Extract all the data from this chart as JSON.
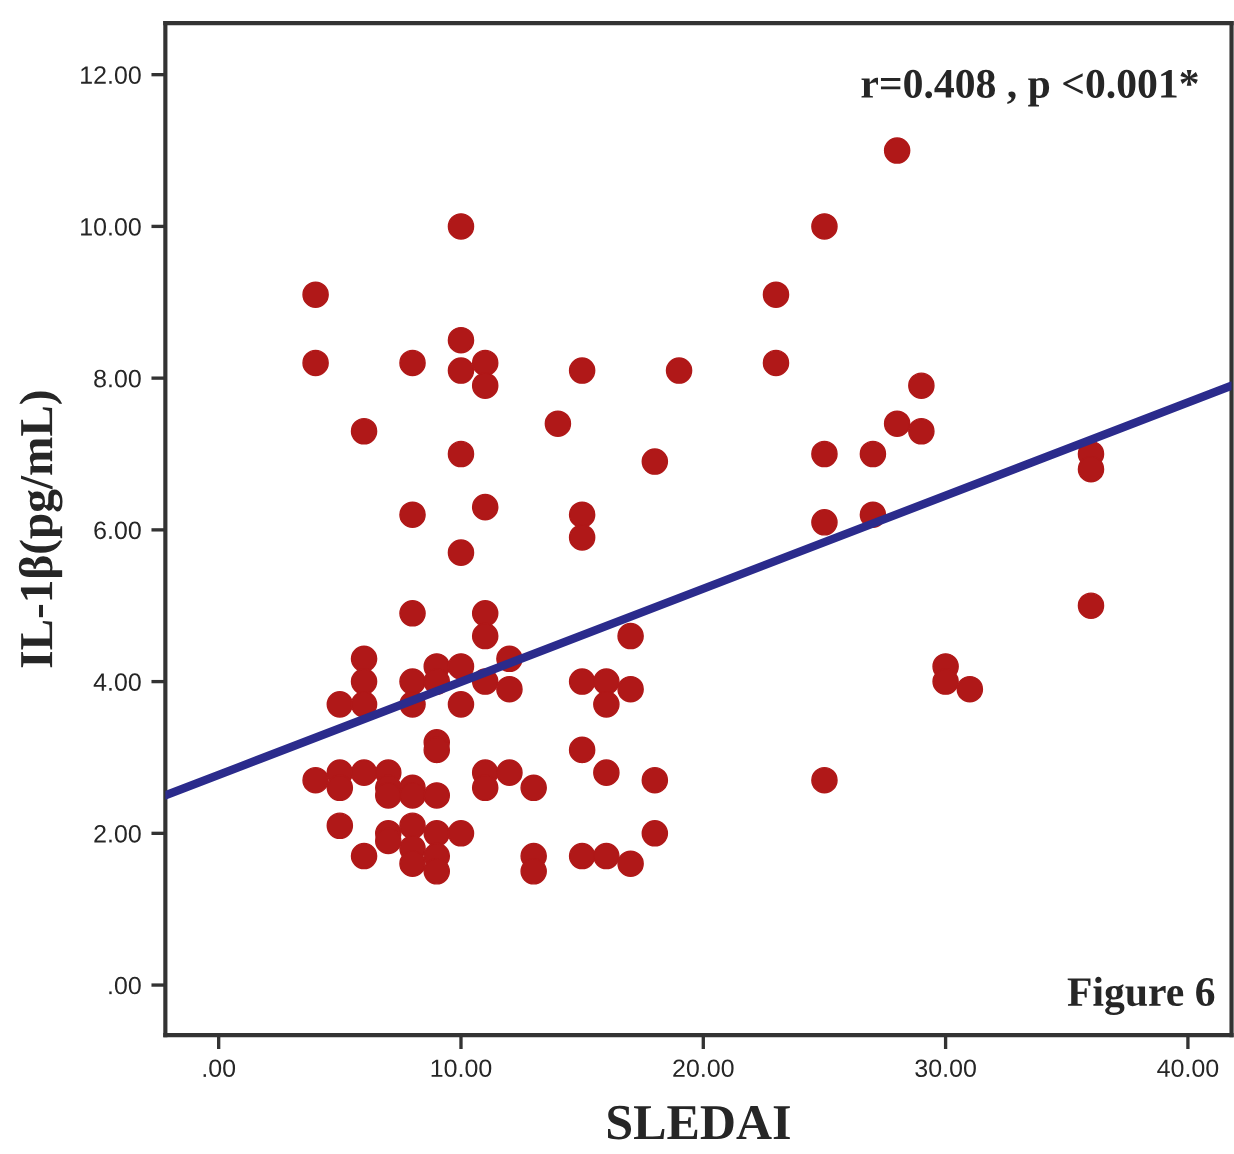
{
  "chart_data": {
    "type": "scatter",
    "xlabel": "SLEDAI",
    "ylabel": "IL-1β(pg/mL)",
    "annotations": [
      "r=0.408 , p <0.001*",
      "Figure 6"
    ],
    "xlim": [
      -2.2,
      41.8
    ],
    "ylim": [
      -0.66,
      12.68
    ],
    "xticks": [
      {
        "value": 0,
        "label": ".00"
      },
      {
        "value": 10,
        "label": "10.00"
      },
      {
        "value": 20,
        "label": "20.00"
      },
      {
        "value": 30,
        "label": "30.00"
      },
      {
        "value": 40,
        "label": "40.00"
      }
    ],
    "yticks": [
      {
        "value": 0,
        "label": ".00"
      },
      {
        "value": 2,
        "label": "2.00"
      },
      {
        "value": 4,
        "label": "4.00"
      },
      {
        "value": 6,
        "label": "6.00"
      },
      {
        "value": 8,
        "label": "8.00"
      },
      {
        "value": 10,
        "label": "10.00"
      },
      {
        "value": 12,
        "label": "12.00"
      }
    ],
    "grid": false,
    "series": [
      {
        "marker": "circle",
        "color": "#b01818",
        "x": [
          10,
          4,
          4,
          8,
          10,
          10,
          11,
          11,
          15,
          19,
          6,
          14,
          18,
          10,
          8,
          11,
          15,
          15,
          10,
          8,
          11,
          11,
          17,
          6,
          6,
          5,
          6,
          8,
          8,
          9,
          9,
          10,
          10,
          11,
          12,
          12,
          15,
          16,
          16,
          17,
          9,
          9,
          15,
          16,
          18,
          4,
          5,
          5,
          6,
          7,
          7,
          7,
          8,
          8,
          9,
          11,
          11,
          12,
          13,
          5,
          7,
          7,
          8,
          9,
          10,
          6,
          8,
          8,
          9,
          9,
          13,
          13,
          15,
          16,
          17,
          18,
          28,
          25,
          23,
          23,
          29,
          28,
          29,
          25,
          27,
          36,
          36,
          25,
          27,
          36,
          30,
          30,
          31,
          25
        ],
        "values": [
          10.0,
          9.1,
          8.2,
          8.2,
          8.5,
          8.1,
          8.2,
          7.9,
          8.1,
          8.1,
          7.3,
          7.4,
          6.9,
          7.0,
          6.2,
          6.3,
          6.2,
          5.9,
          5.7,
          4.9,
          4.9,
          4.6,
          4.6,
          4.3,
          4.0,
          3.7,
          3.7,
          4.0,
          3.7,
          4.2,
          4.0,
          4.2,
          3.7,
          4.0,
          4.3,
          3.9,
          4.0,
          4.0,
          3.7,
          3.9,
          3.2,
          3.1,
          3.1,
          2.8,
          2.7,
          2.7,
          2.8,
          2.6,
          2.8,
          2.8,
          2.6,
          2.5,
          2.6,
          2.5,
          2.5,
          2.8,
          2.6,
          2.8,
          2.6,
          2.1,
          2.0,
          1.9,
          2.1,
          2.0,
          2.0,
          1.7,
          1.8,
          1.6,
          1.7,
          1.5,
          1.7,
          1.5,
          1.7,
          1.7,
          1.6,
          2.0,
          11.0,
          10.0,
          9.1,
          8.2,
          7.9,
          7.4,
          7.3,
          7.0,
          7.0,
          7.0,
          6.8,
          6.1,
          6.2,
          5.0,
          4.2,
          4.0,
          3.9,
          2.7
        ]
      },
      {
        "type": "line",
        "color": "#2b2b8c",
        "x": [
          -2.2,
          41.8
        ],
        "values": [
          2.5,
          7.9
        ]
      }
    ]
  }
}
